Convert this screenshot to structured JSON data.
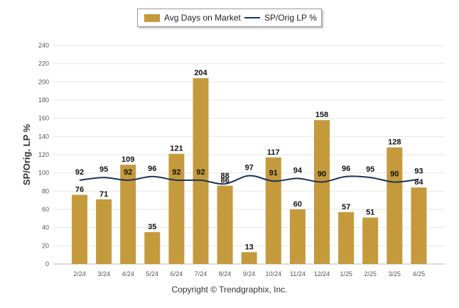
{
  "chart_data": {
    "type": "bar",
    "categories": [
      "2/24",
      "3/24",
      "4/24",
      "5/24",
      "6/24",
      "7/24",
      "8/24",
      "9/24",
      "10/24",
      "11/24",
      "12/24",
      "1/25",
      "2/25",
      "3/25",
      "4/25"
    ],
    "series": [
      {
        "name": "Avg Days on Market",
        "type": "bar",
        "color": "#c49a3c",
        "values": [
          76,
          71,
          109,
          35,
          121,
          204,
          86,
          13,
          117,
          60,
          158,
          57,
          51,
          128,
          84
        ]
      },
      {
        "name": "SP/Orig LP %",
        "type": "line",
        "color": "#1b3355",
        "values": [
          92,
          95,
          92,
          96,
          92,
          92,
          88,
          97,
          91,
          94,
          90,
          96,
          95,
          90,
          93
        ]
      }
    ],
    "ylabel": "SP/Orig. LP %",
    "ylim": [
      0,
      240
    ],
    "yticks": [
      0,
      20,
      40,
      60,
      80,
      100,
      120,
      140,
      160,
      180,
      200,
      220,
      240
    ],
    "grid": true,
    "legend": "top-center"
  },
  "footer": {
    "copyright": "Copyright © Trendgraphix, Inc."
  }
}
